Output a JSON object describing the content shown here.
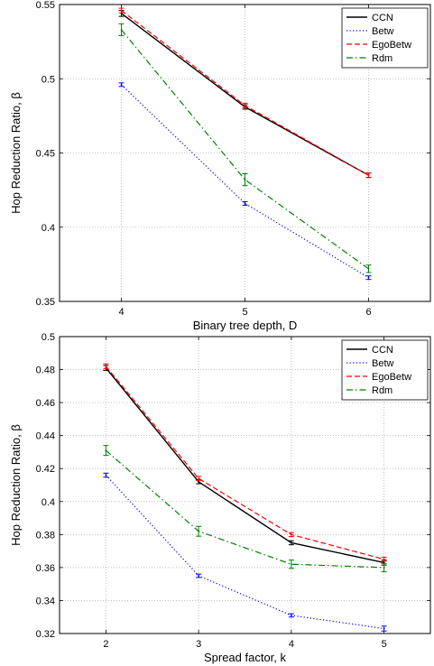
{
  "chart_data": [
    {
      "type": "line",
      "xlabel": "Binary tree depth, D",
      "ylabel": "Hop Reduction Ratio, β",
      "xlim": [
        3.5,
        6.5
      ],
      "ylim": [
        0.35,
        0.55
      ],
      "xticks": [
        4,
        5,
        6
      ],
      "xtick_labels": [
        "4",
        "5",
        "6"
      ],
      "yticks": [
        0.35,
        0.4,
        0.45,
        0.5,
        0.55
      ],
      "ytick_labels": [
        "0.35",
        "0.4",
        "0.45",
        "0.5",
        "0.55"
      ],
      "grid": true,
      "legend_position": "top-right",
      "series": [
        {
          "name": "CCN",
          "color": "#000000",
          "style": "solid",
          "x": [
            4,
            5,
            6
          ],
          "values": [
            0.544,
            0.481,
            0.435
          ],
          "err": [
            0.002,
            0.0015,
            0.0015
          ]
        },
        {
          "name": "Betw",
          "color": "#0000ff",
          "style": "dotted",
          "x": [
            4,
            5,
            6
          ],
          "values": [
            0.496,
            0.416,
            0.366
          ],
          "err": [
            0.0012,
            0.0012,
            0.0012
          ]
        },
        {
          "name": "EgoBetw",
          "color": "#ff0000",
          "style": "dashed",
          "x": [
            4,
            5,
            6
          ],
          "values": [
            0.546,
            0.482,
            0.435
          ],
          "err": [
            0.0015,
            0.0015,
            0.0015
          ]
        },
        {
          "name": "Rdm",
          "color": "#008000",
          "style": "dashdot",
          "x": [
            4,
            5,
            6
          ],
          "values": [
            0.533,
            0.432,
            0.372
          ],
          "err": [
            0.004,
            0.004,
            0.0025
          ]
        }
      ]
    },
    {
      "type": "line",
      "xlabel": "Spread factor, k",
      "ylabel": "Hop Reduction Ratio, β",
      "xlim": [
        1.5,
        5.5
      ],
      "ylim": [
        0.32,
        0.5
      ],
      "xticks": [
        2,
        3,
        4,
        5
      ],
      "xtick_labels": [
        "2",
        "3",
        "4",
        "5"
      ],
      "yticks": [
        0.32,
        0.34,
        0.36,
        0.38,
        0.4,
        0.42,
        0.44,
        0.46,
        0.48,
        0.5
      ],
      "ytick_labels": [
        "0.32",
        "0.34",
        "0.36",
        "0.38",
        "0.4",
        "0.42",
        "0.44",
        "0.46",
        "0.48",
        "0.5"
      ],
      "grid": true,
      "legend_position": "top-right",
      "series": [
        {
          "name": "CCN",
          "color": "#000000",
          "style": "solid",
          "x": [
            2,
            3,
            4,
            5
          ],
          "values": [
            0.481,
            0.412,
            0.375,
            0.363
          ],
          "err": [
            0.0015,
            0.0012,
            0.0012,
            0.0015
          ]
        },
        {
          "name": "Betw",
          "color": "#0000ff",
          "style": "dotted",
          "x": [
            2,
            3,
            4,
            5
          ],
          "values": [
            0.416,
            0.355,
            0.331,
            0.323
          ],
          "err": [
            0.0012,
            0.001,
            0.001,
            0.0015
          ]
        },
        {
          "name": "EgoBetw",
          "color": "#ff0000",
          "style": "dashed",
          "x": [
            2,
            3,
            4,
            5
          ],
          "values": [
            0.482,
            0.414,
            0.38,
            0.365
          ],
          "err": [
            0.0015,
            0.0012,
            0.0012,
            0.0012
          ]
        },
        {
          "name": "Rdm",
          "color": "#008000",
          "style": "dashdot",
          "x": [
            2,
            3,
            4,
            5
          ],
          "values": [
            0.431,
            0.382,
            0.362,
            0.36
          ],
          "err": [
            0.003,
            0.003,
            0.0025,
            0.0025
          ]
        }
      ]
    }
  ]
}
